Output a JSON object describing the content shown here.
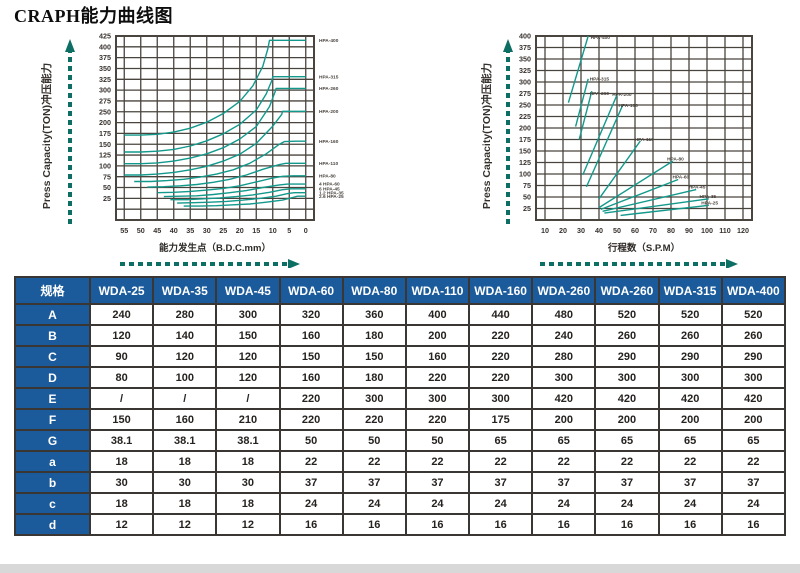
{
  "title": "CRAPH能力曲线图",
  "colors": {
    "curve_teal": "#12998b",
    "grid": "#4a443e",
    "tick_text": "#38322e",
    "arrow_teal": "#0d6f63",
    "table_blue": "#1b5b9b",
    "table_border": "#3a3633",
    "footer_gray": "#d8d8d8"
  },
  "chart_data": [
    {
      "type": "line",
      "name": "capacity-vs-bdc",
      "y_axis_title": "Press Capacity(TON)冲压能力",
      "x_axis_title": "能力发生点（B.D.C.mm）",
      "y_tick_labels": [
        "425",
        "400",
        "375",
        "350",
        "325",
        "300",
        "275",
        "250",
        "200",
        "175",
        "150",
        "125",
        "100",
        "75",
        "50",
        "25"
      ],
      "y_label_start": 425,
      "y_label_step": 25,
      "y_range": [
        0,
        425
      ],
      "y_grid_step": 25,
      "x_tick_labels": [
        "55",
        "50",
        "45",
        "40",
        "35",
        "30",
        "25",
        "20",
        "15",
        "10",
        "5",
        "0"
      ],
      "x_tick_values": [
        55,
        50,
        45,
        40,
        35,
        30,
        25,
        20,
        15,
        10,
        5,
        0
      ],
      "x_range": [
        57.5,
        -2.5
      ],
      "grid": true,
      "label_mode": "right-margin",
      "series": [
        {
          "name": "HPA-400",
          "prefix": "",
          "label_y": 415,
          "points": [
            [
              55,
              196
            ],
            [
              50,
              196
            ],
            [
              45,
              198
            ],
            [
              40,
              203
            ],
            [
              35,
              212
            ],
            [
              30,
              226
            ],
            [
              25,
              246
            ],
            [
              20,
              274
            ],
            [
              16,
              310
            ],
            [
              13,
              355
            ],
            [
              11.5,
              395
            ],
            [
              11,
              415
            ],
            [
              8,
              415
            ],
            [
              0,
              415
            ]
          ]
        },
        {
          "name": "HPA-315",
          "prefix": "",
          "label_y": 331,
          "points": [
            [
              55,
              157
            ],
            [
              50,
              157
            ],
            [
              45,
              159
            ],
            [
              40,
              163
            ],
            [
              35,
              171
            ],
            [
              30,
              183
            ],
            [
              25,
              199
            ],
            [
              20,
              221
            ],
            [
              15,
              254
            ],
            [
              12,
              291
            ],
            [
              10.3,
              322
            ],
            [
              10,
              331
            ],
            [
              7,
              331
            ],
            [
              0,
              331
            ]
          ]
        },
        {
          "name": "HPA-260",
          "prefix": "",
          "label_y": 304,
          "points": [
            [
              55,
              130
            ],
            [
              50,
              130
            ],
            [
              45,
              132
            ],
            [
              40,
              136
            ],
            [
              35,
              143
            ],
            [
              30,
              153
            ],
            [
              25,
              167
            ],
            [
              20,
              187
            ],
            [
              15,
              216
            ],
            [
              11,
              262
            ],
            [
              9.3,
              296
            ],
            [
              9,
              304
            ],
            [
              6,
              304
            ],
            [
              0,
              304
            ]
          ]
        },
        {
          "name": "HPA-200",
          "prefix": "",
          "label_y": 251,
          "points": [
            [
              55,
              104
            ],
            [
              50,
              104
            ],
            [
              45,
              106
            ],
            [
              40,
              110
            ],
            [
              35,
              116
            ],
            [
              30,
              124
            ],
            [
              25,
              136
            ],
            [
              20,
              152
            ],
            [
              15,
              177
            ],
            [
              10,
              217
            ],
            [
              7.3,
              244
            ],
            [
              7,
              251
            ],
            [
              4,
              251
            ],
            [
              0,
              251
            ]
          ]
        },
        {
          "name": "HPA-160",
          "prefix": "",
          "label_y": 182,
          "points": [
            [
              52,
              89
            ],
            [
              47,
              89
            ],
            [
              42,
              91
            ],
            [
              37,
              94
            ],
            [
              32,
              99
            ],
            [
              27,
              106
            ],
            [
              22,
              116
            ],
            [
              17,
              131
            ],
            [
              12,
              153
            ],
            [
              8,
              175
            ],
            [
              6.5,
              181
            ],
            [
              3,
              182
            ],
            [
              0,
              182
            ]
          ]
        },
        {
          "name": "HPA-110",
          "prefix": "",
          "label_y": 131,
          "points": [
            [
              48,
              76
            ],
            [
              43,
              77
            ],
            [
              38,
              79
            ],
            [
              33,
              82
            ],
            [
              28,
              87
            ],
            [
              23,
              94
            ],
            [
              18,
              104
            ],
            [
              13,
              117
            ],
            [
              8,
              128
            ],
            [
              6,
              131
            ],
            [
              3,
              131
            ],
            [
              0,
              131
            ]
          ]
        },
        {
          "name": "HPA-80",
          "prefix": "",
          "label_y": 102,
          "points": [
            [
              45,
              63
            ],
            [
              40,
              64
            ],
            [
              35,
              66
            ],
            [
              30,
              69
            ],
            [
              25,
              73
            ],
            [
              20,
              79
            ],
            [
              15,
              88
            ],
            [
              10,
              97
            ],
            [
              7,
              101
            ],
            [
              4,
              102
            ],
            [
              0,
              102
            ]
          ]
        },
        {
          "name": "HPA-60",
          "prefix": "4",
          "label_y": 83,
          "points": [
            [
              43,
              54
            ],
            [
              38,
              55
            ],
            [
              33,
              56
            ],
            [
              28,
              59
            ],
            [
              23,
              63
            ],
            [
              18,
              68
            ],
            [
              13,
              75
            ],
            [
              8,
              81
            ],
            [
              5.5,
              83
            ],
            [
              3,
              83
            ],
            [
              0,
              83
            ]
          ]
        },
        {
          "name": "HPA-45",
          "prefix": "6",
          "label_y": 72,
          "points": [
            [
              41,
              47
            ],
            [
              36,
              47
            ],
            [
              31,
              49
            ],
            [
              26,
              51
            ],
            [
              21,
              54
            ],
            [
              16,
              58
            ],
            [
              11,
              64
            ],
            [
              7,
              70
            ],
            [
              4.5,
              72
            ],
            [
              2,
              72
            ],
            [
              0,
              72
            ]
          ]
        },
        {
          "name": "HPA-35",
          "prefix": "1.2",
          "label_y": 63,
          "points": [
            [
              39,
              39
            ],
            [
              34,
              40
            ],
            [
              29,
              41
            ],
            [
              24,
              43
            ],
            [
              19,
              46
            ],
            [
              14,
              50
            ],
            [
              9,
              55
            ],
            [
              5.5,
              61
            ],
            [
              3.5,
              63
            ],
            [
              1.5,
              63
            ],
            [
              0,
              63
            ]
          ]
        },
        {
          "name": "HPA-25",
          "prefix": "2.6",
          "label_y": 55,
          "points": [
            [
              37,
              32
            ],
            [
              32,
              32
            ],
            [
              27,
              33
            ],
            [
              22,
              35
            ],
            [
              17,
              37
            ],
            [
              12,
              41
            ],
            [
              7,
              46
            ],
            [
              4,
              52
            ],
            [
              2.5,
              55
            ],
            [
              1,
              55
            ],
            [
              0,
              55
            ]
          ]
        }
      ]
    },
    {
      "type": "line",
      "name": "capacity-vs-spm",
      "y_axis_title": "Press Capacity(TON)冲压能力",
      "x_axis_title": "行程数（S.P.M）",
      "y_tick_labels": [
        "400",
        "375",
        "350",
        "325",
        "300",
        "275",
        "250",
        "225",
        "200",
        "175",
        "150",
        "125",
        "100",
        "75",
        "50",
        "25"
      ],
      "y_label_start": 400,
      "y_label_step": 25,
      "y_range": [
        0,
        400
      ],
      "y_grid_step": 25,
      "x_tick_labels": [
        "10",
        "20",
        "30",
        "40",
        "50",
        "60",
        "70",
        "80",
        "90",
        "100",
        "110",
        "120"
      ],
      "x_tick_values": [
        10,
        20,
        30,
        40,
        50,
        60,
        70,
        80,
        90,
        100,
        110,
        120
      ],
      "x_range": [
        5,
        125
      ],
      "grid": true,
      "label_mode": "inline",
      "series": [
        {
          "name": "HPA-400",
          "label_at": [
            34.5,
            393
          ],
          "points": [
            [
              23,
              255
            ],
            [
              34,
              400
            ]
          ]
        },
        {
          "name": "HPA-315",
          "label_at": [
            34,
            303
          ],
          "points": [
            [
              27,
              203
            ],
            [
              34,
              307
            ]
          ]
        },
        {
          "name": "HPA-260",
          "label_at": [
            34,
            272
          ],
          "points": [
            [
              29,
              175
            ],
            [
              36,
              280
            ]
          ]
        },
        {
          "name": "HPA-200",
          "label_at": [
            46.5,
            270
          ],
          "points": [
            [
              31,
              98
            ],
            [
              50,
              272
            ]
          ]
        },
        {
          "name": "HPA-160",
          "label_at": [
            50,
            246
          ],
          "points": [
            [
              33,
              72
            ],
            [
              53,
              248
            ]
          ]
        },
        {
          "name": "HPA-110",
          "label_at": [
            59,
            172
          ],
          "points": [
            [
              40,
              46
            ],
            [
              63,
              172
            ]
          ]
        },
        {
          "name": "HPA-80",
          "label_at": [
            77,
            129
          ],
          "points": [
            [
              40,
              27
            ],
            [
              81,
              128
            ]
          ]
        },
        {
          "name": "HPA-60",
          "label_at": [
            80,
            90
          ],
          "points": [
            [
              41,
              23
            ],
            [
              84,
              88
            ]
          ]
        },
        {
          "name": "HPA-45",
          "label_at": [
            89,
            68
          ],
          "points": [
            [
              42,
              19
            ],
            [
              94,
              66
            ]
          ]
        },
        {
          "name": "HPA-35",
          "label_at": [
            95,
            48
          ],
          "points": [
            [
              43,
              15
            ],
            [
              101,
              46
            ]
          ]
        },
        {
          "name": "HPA-25",
          "label_at": [
            96,
            34
          ],
          "points": [
            [
              52,
              10
            ],
            [
              101,
              32
            ]
          ]
        }
      ]
    }
  ],
  "table": {
    "header": [
      "规格",
      "WDA-25",
      "WDA-35",
      "WDA-45",
      "WDA-60",
      "WDA-80",
      "WDA-110",
      "WDA-160",
      "WDA-260",
      "WDA-260",
      "WDA-315",
      "WDA-400"
    ],
    "rows": [
      {
        "label": "A",
        "values": [
          "240",
          "280",
          "300",
          "320",
          "360",
          "400",
          "440",
          "480",
          "520",
          "520",
          "520"
        ]
      },
      {
        "label": "B",
        "values": [
          "120",
          "140",
          "150",
          "160",
          "180",
          "200",
          "220",
          "240",
          "260",
          "260",
          "260"
        ]
      },
      {
        "label": "C",
        "values": [
          "90",
          "120",
          "120",
          "150",
          "150",
          "160",
          "220",
          "280",
          "290",
          "290",
          "290"
        ]
      },
      {
        "label": "D",
        "values": [
          "80",
          "100",
          "120",
          "160",
          "180",
          "220",
          "220",
          "300",
          "300",
          "300",
          "300"
        ]
      },
      {
        "label": "E",
        "values": [
          "/",
          "/",
          "/",
          "220",
          "300",
          "300",
          "300",
          "420",
          "420",
          "420",
          "420"
        ]
      },
      {
        "label": "F",
        "values": [
          "150",
          "160",
          "210",
          "220",
          "220",
          "220",
          "175",
          "200",
          "200",
          "200",
          "200"
        ]
      },
      {
        "label": "G",
        "values": [
          "38.1",
          "38.1",
          "38.1",
          "50",
          "50",
          "50",
          "65",
          "65",
          "65",
          "65",
          "65"
        ]
      },
      {
        "label": "a",
        "values": [
          "18",
          "18",
          "18",
          "22",
          "22",
          "22",
          "22",
          "22",
          "22",
          "22",
          "22"
        ]
      },
      {
        "label": "b",
        "values": [
          "30",
          "30",
          "30",
          "37",
          "37",
          "37",
          "37",
          "37",
          "37",
          "37",
          "37"
        ]
      },
      {
        "label": "c",
        "values": [
          "18",
          "18",
          "18",
          "24",
          "24",
          "24",
          "24",
          "24",
          "24",
          "24",
          "24"
        ]
      },
      {
        "label": "d",
        "values": [
          "12",
          "12",
          "12",
          "16",
          "16",
          "16",
          "16",
          "16",
          "16",
          "16",
          "16"
        ]
      }
    ]
  }
}
